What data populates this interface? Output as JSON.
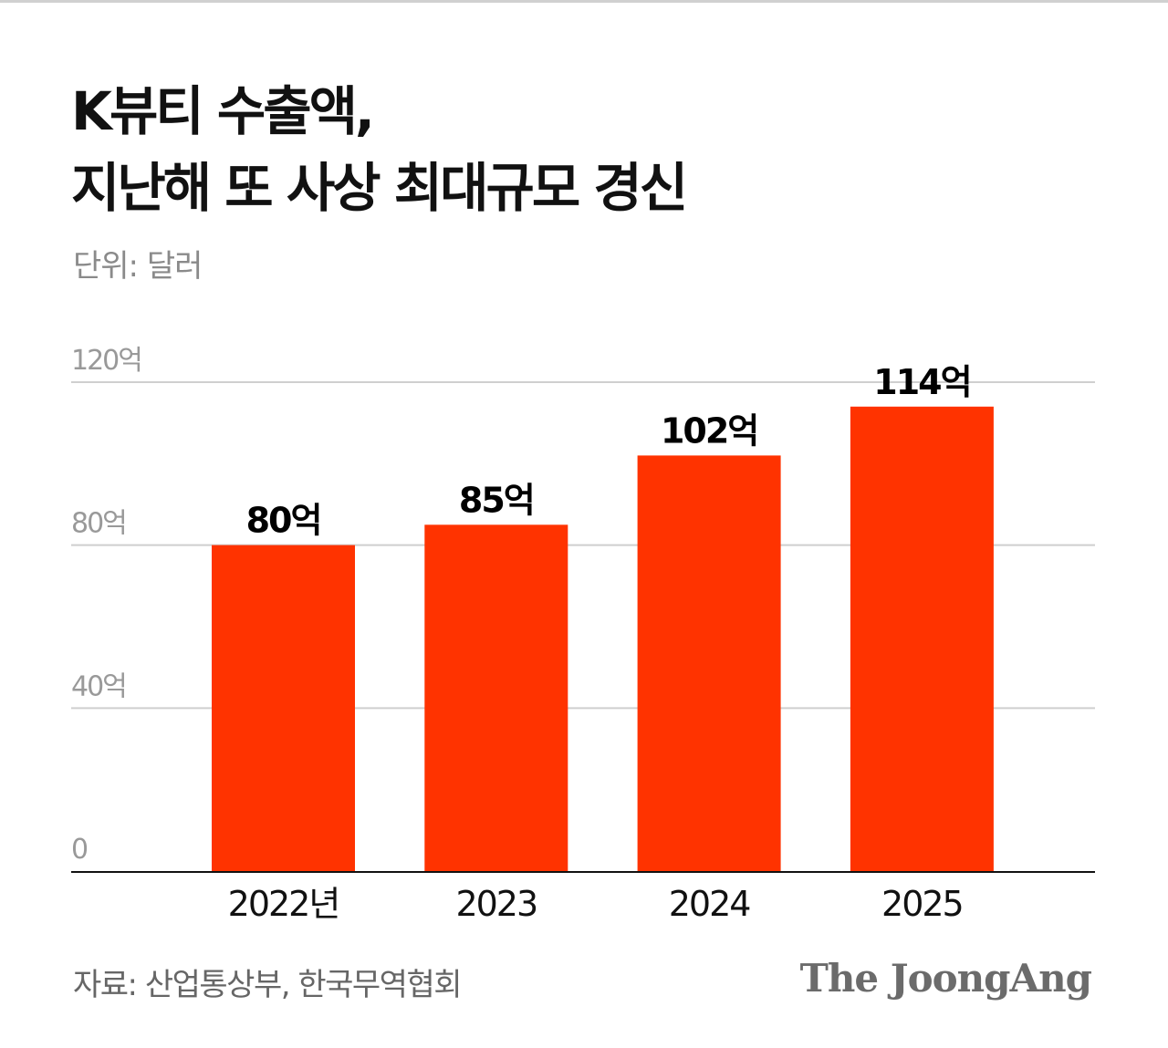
{
  "title_lines": [
    "K뷰티 수출액,",
    "지난해 또 사상 최대규모 경신"
  ],
  "unit_label": "단위: 달러",
  "source": "자료: 산업통상부, 한국무역협회",
  "logo": "The JoongAng",
  "colors": {
    "bar": "#FF3300",
    "grid": "#cfcfcf",
    "axis": "#111111",
    "tick_label": "#999999"
  },
  "chart_data": {
    "type": "bar",
    "categories": [
      "2022년",
      "2023",
      "2024",
      "2025"
    ],
    "values": [
      80,
      85,
      102,
      114
    ],
    "data_labels": [
      "80억",
      "85억",
      "102억",
      "114억"
    ],
    "ylim": [
      0,
      120
    ],
    "yticks": [
      0,
      40,
      80,
      120
    ],
    "ytick_labels": [
      "0",
      "40억",
      "80억",
      "120억"
    ],
    "grid": true,
    "xlabel": "",
    "ylabel": ""
  }
}
